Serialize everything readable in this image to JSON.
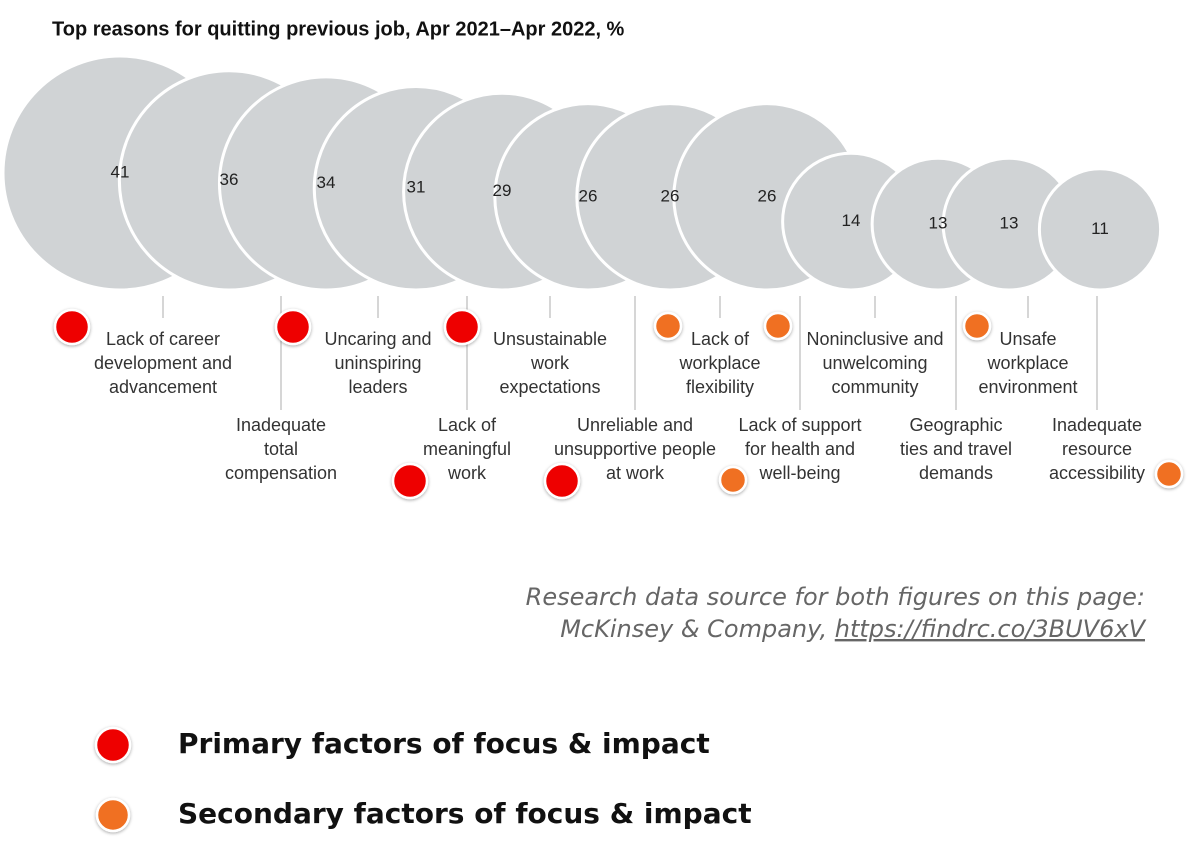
{
  "chart_data": {
    "type": "bubble",
    "title": "Top reasons for quitting previous job, Apr 2021–Apr 2022, %",
    "categories": [
      [
        "Lack of career",
        "development and",
        "advancement"
      ],
      [
        "Inadequate",
        "total",
        "compensation"
      ],
      [
        "Uncaring and",
        "uninspiring",
        "leaders"
      ],
      [
        "Lack of",
        "meaningful",
        "work"
      ],
      [
        "Unsustainable",
        "work",
        "expectations"
      ],
      [
        "Unreliable and",
        "unsupportive people",
        "at work"
      ],
      [
        "Lack of",
        "workplace",
        "flexibility"
      ],
      [
        "Lack of support",
        "for health and",
        "well-being"
      ],
      [
        "Noninclusive and",
        "unwelcoming",
        "community"
      ],
      [
        "Geographic",
        "ties and travel",
        "demands"
      ],
      [
        "Unsafe",
        "workplace",
        "environment"
      ],
      [
        "Inadequate",
        "resource",
        "accessibility"
      ]
    ],
    "values": [
      41,
      36,
      34,
      31,
      29,
      26,
      26,
      26,
      14,
      13,
      13,
      11
    ],
    "color": "#d0d3d5",
    "marker_colors": [
      "#ee0000",
      null,
      "#ee0000",
      "#ee0000",
      "#ee0000",
      "#ee0000",
      "#f07020",
      "#f07020",
      "#f07020",
      null,
      "#f07020",
      "#f07020"
    ],
    "legend": [
      {
        "name": "Primary factors of focus & impact",
        "color": "#ee0000"
      },
      {
        "name": "Secondary factors of focus & impact",
        "color": "#f07020"
      }
    ]
  },
  "source": {
    "line1": "Research data source for both figures on this page:",
    "line2": "McKinsey & Company, ",
    "link": "https://findrc.co/3BUV6xV"
  }
}
